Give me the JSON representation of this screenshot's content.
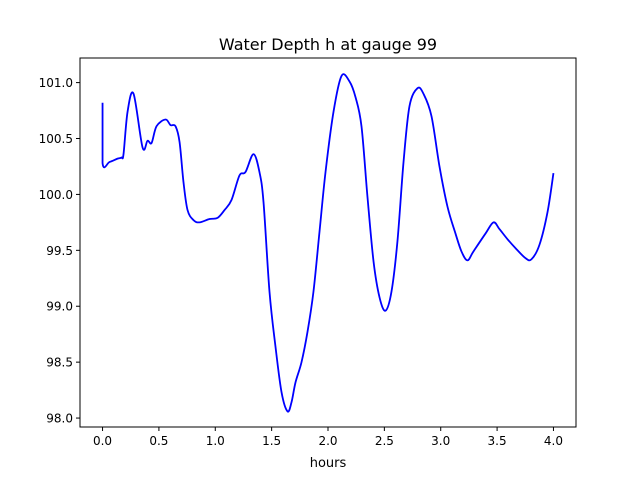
{
  "chart_data": {
    "type": "line",
    "title": "Water Depth h at gauge 99",
    "xlabel": "hours",
    "ylabel": "",
    "xlim": [
      -0.2,
      4.2
    ],
    "ylim": [
      97.92,
      101.22
    ],
    "grid": false,
    "xticks": [
      0.0,
      0.5,
      1.0,
      1.5,
      2.0,
      2.5,
      3.0,
      3.5,
      4.0
    ],
    "xtick_labels": [
      "0.0",
      "0.5",
      "1.0",
      "1.5",
      "2.0",
      "2.5",
      "3.0",
      "3.5",
      "4.0"
    ],
    "yticks": [
      98.0,
      98.5,
      99.0,
      99.5,
      100.0,
      100.5,
      101.0
    ],
    "ytick_labels": [
      "98.0",
      "98.5",
      "99.0",
      "99.5",
      "100.0",
      "100.5",
      "101.0"
    ],
    "series": [
      {
        "name": "h",
        "color": "#0000ff",
        "x": [
          0,
          0,
          0.062,
          0.133,
          0.169,
          0.186,
          0.222,
          0.275,
          0.355,
          0.399,
          0.435,
          0.479,
          0.559,
          0.603,
          0.647,
          0.683,
          0.718,
          0.754,
          0.807,
          0.86,
          0.949,
          1.02,
          1.082,
          1.144,
          1.215,
          1.268,
          1.339,
          1.392,
          1.428,
          1.481,
          1.534,
          1.588,
          1.641,
          1.676,
          1.712,
          1.765,
          1.818,
          1.871,
          1.925,
          1.978,
          2.049,
          2.12,
          2.191,
          2.244,
          2.297,
          2.35,
          2.404,
          2.457,
          2.51,
          2.563,
          2.616,
          2.67,
          2.723,
          2.794,
          2.847,
          2.918,
          2.989,
          3.06,
          3.131,
          3.184,
          3.237,
          3.29,
          3.397,
          3.468,
          3.521,
          3.592,
          3.663,
          3.752,
          3.805,
          3.876,
          3.947,
          4.0
        ],
        "y": [
          100.82,
          100.28,
          100.29,
          100.32,
          100.33,
          100.36,
          100.74,
          100.9,
          100.42,
          100.48,
          100.46,
          100.61,
          100.67,
          100.62,
          100.61,
          100.47,
          100.11,
          99.86,
          99.77,
          99.75,
          99.78,
          99.79,
          99.86,
          99.95,
          100.17,
          100.2,
          100.36,
          100.2,
          99.93,
          99.13,
          98.64,
          98.23,
          98.06,
          98.14,
          98.32,
          98.5,
          98.77,
          99.13,
          99.67,
          100.2,
          100.74,
          101.06,
          101.01,
          100.87,
          100.61,
          99.98,
          99.4,
          99.08,
          98.96,
          99.13,
          99.58,
          100.29,
          100.79,
          100.95,
          100.9,
          100.7,
          100.25,
          99.89,
          99.65,
          99.49,
          99.41,
          99.49,
          99.65,
          99.75,
          99.69,
          99.6,
          99.52,
          99.43,
          99.42,
          99.55,
          99.84,
          100.19
        ]
      }
    ]
  }
}
